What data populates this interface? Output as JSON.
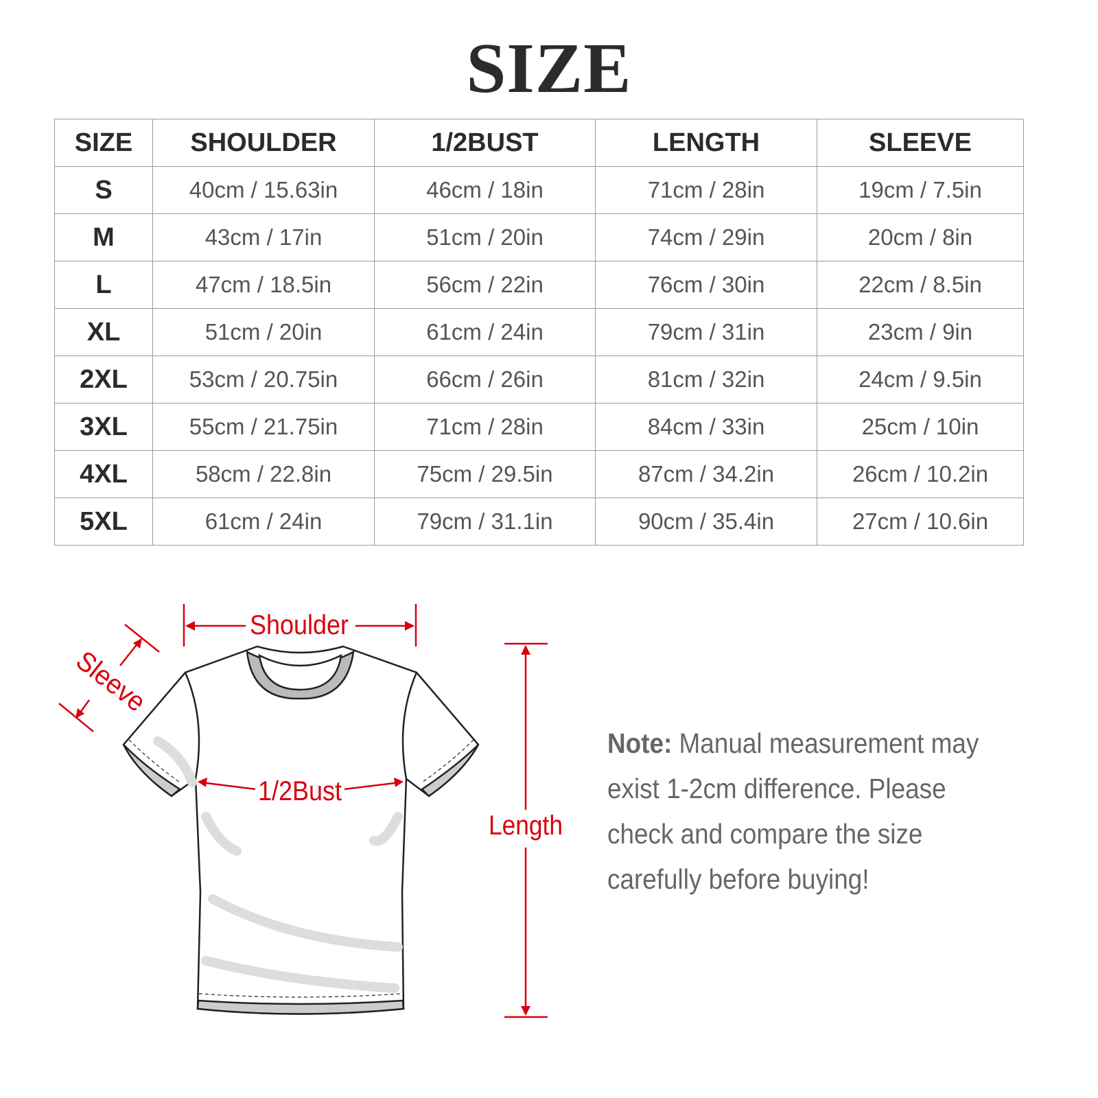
{
  "title": "SIZE",
  "table": {
    "headers": [
      "SIZE",
      "SHOULDER",
      "1/2BUST",
      "LENGTH",
      "SLEEVE"
    ],
    "rows": [
      [
        "S",
        "40cm / 15.63in",
        "46cm / 18in",
        "71cm / 28in",
        "19cm / 7.5in"
      ],
      [
        "M",
        "43cm / 17in",
        "51cm / 20in",
        "74cm / 29in",
        "20cm / 8in"
      ],
      [
        "L",
        "47cm / 18.5in",
        "56cm / 22in",
        "76cm / 30in",
        "22cm / 8.5in"
      ],
      [
        "XL",
        "51cm / 20in",
        "61cm / 24in",
        "79cm / 31in",
        "23cm / 9in"
      ],
      [
        "2XL",
        "53cm / 20.75in",
        "66cm / 26in",
        "81cm / 32in",
        "24cm / 9.5in"
      ],
      [
        "3XL",
        "55cm / 21.75in",
        "71cm / 28in",
        "84cm / 33in",
        "25cm / 10in"
      ],
      [
        "4XL",
        "58cm / 22.8in",
        "75cm / 29.5in",
        "87cm / 34.2in",
        "26cm / 10.2in"
      ],
      [
        "5XL",
        "61cm / 24in",
        "79cm / 31.1in",
        "90cm / 35.4in",
        "27cm / 10.6in"
      ]
    ]
  },
  "diagram": {
    "labels": {
      "shoulder": "Shoulder",
      "sleeve": "Sleeve",
      "bust": "1/2Bust",
      "length": "Length"
    },
    "accent_color": "#d9000d"
  },
  "note": {
    "label": "Note:",
    "text": " Manual measurement may exist 1-2cm difference. Please check and compare the size carefully before buying!"
  }
}
